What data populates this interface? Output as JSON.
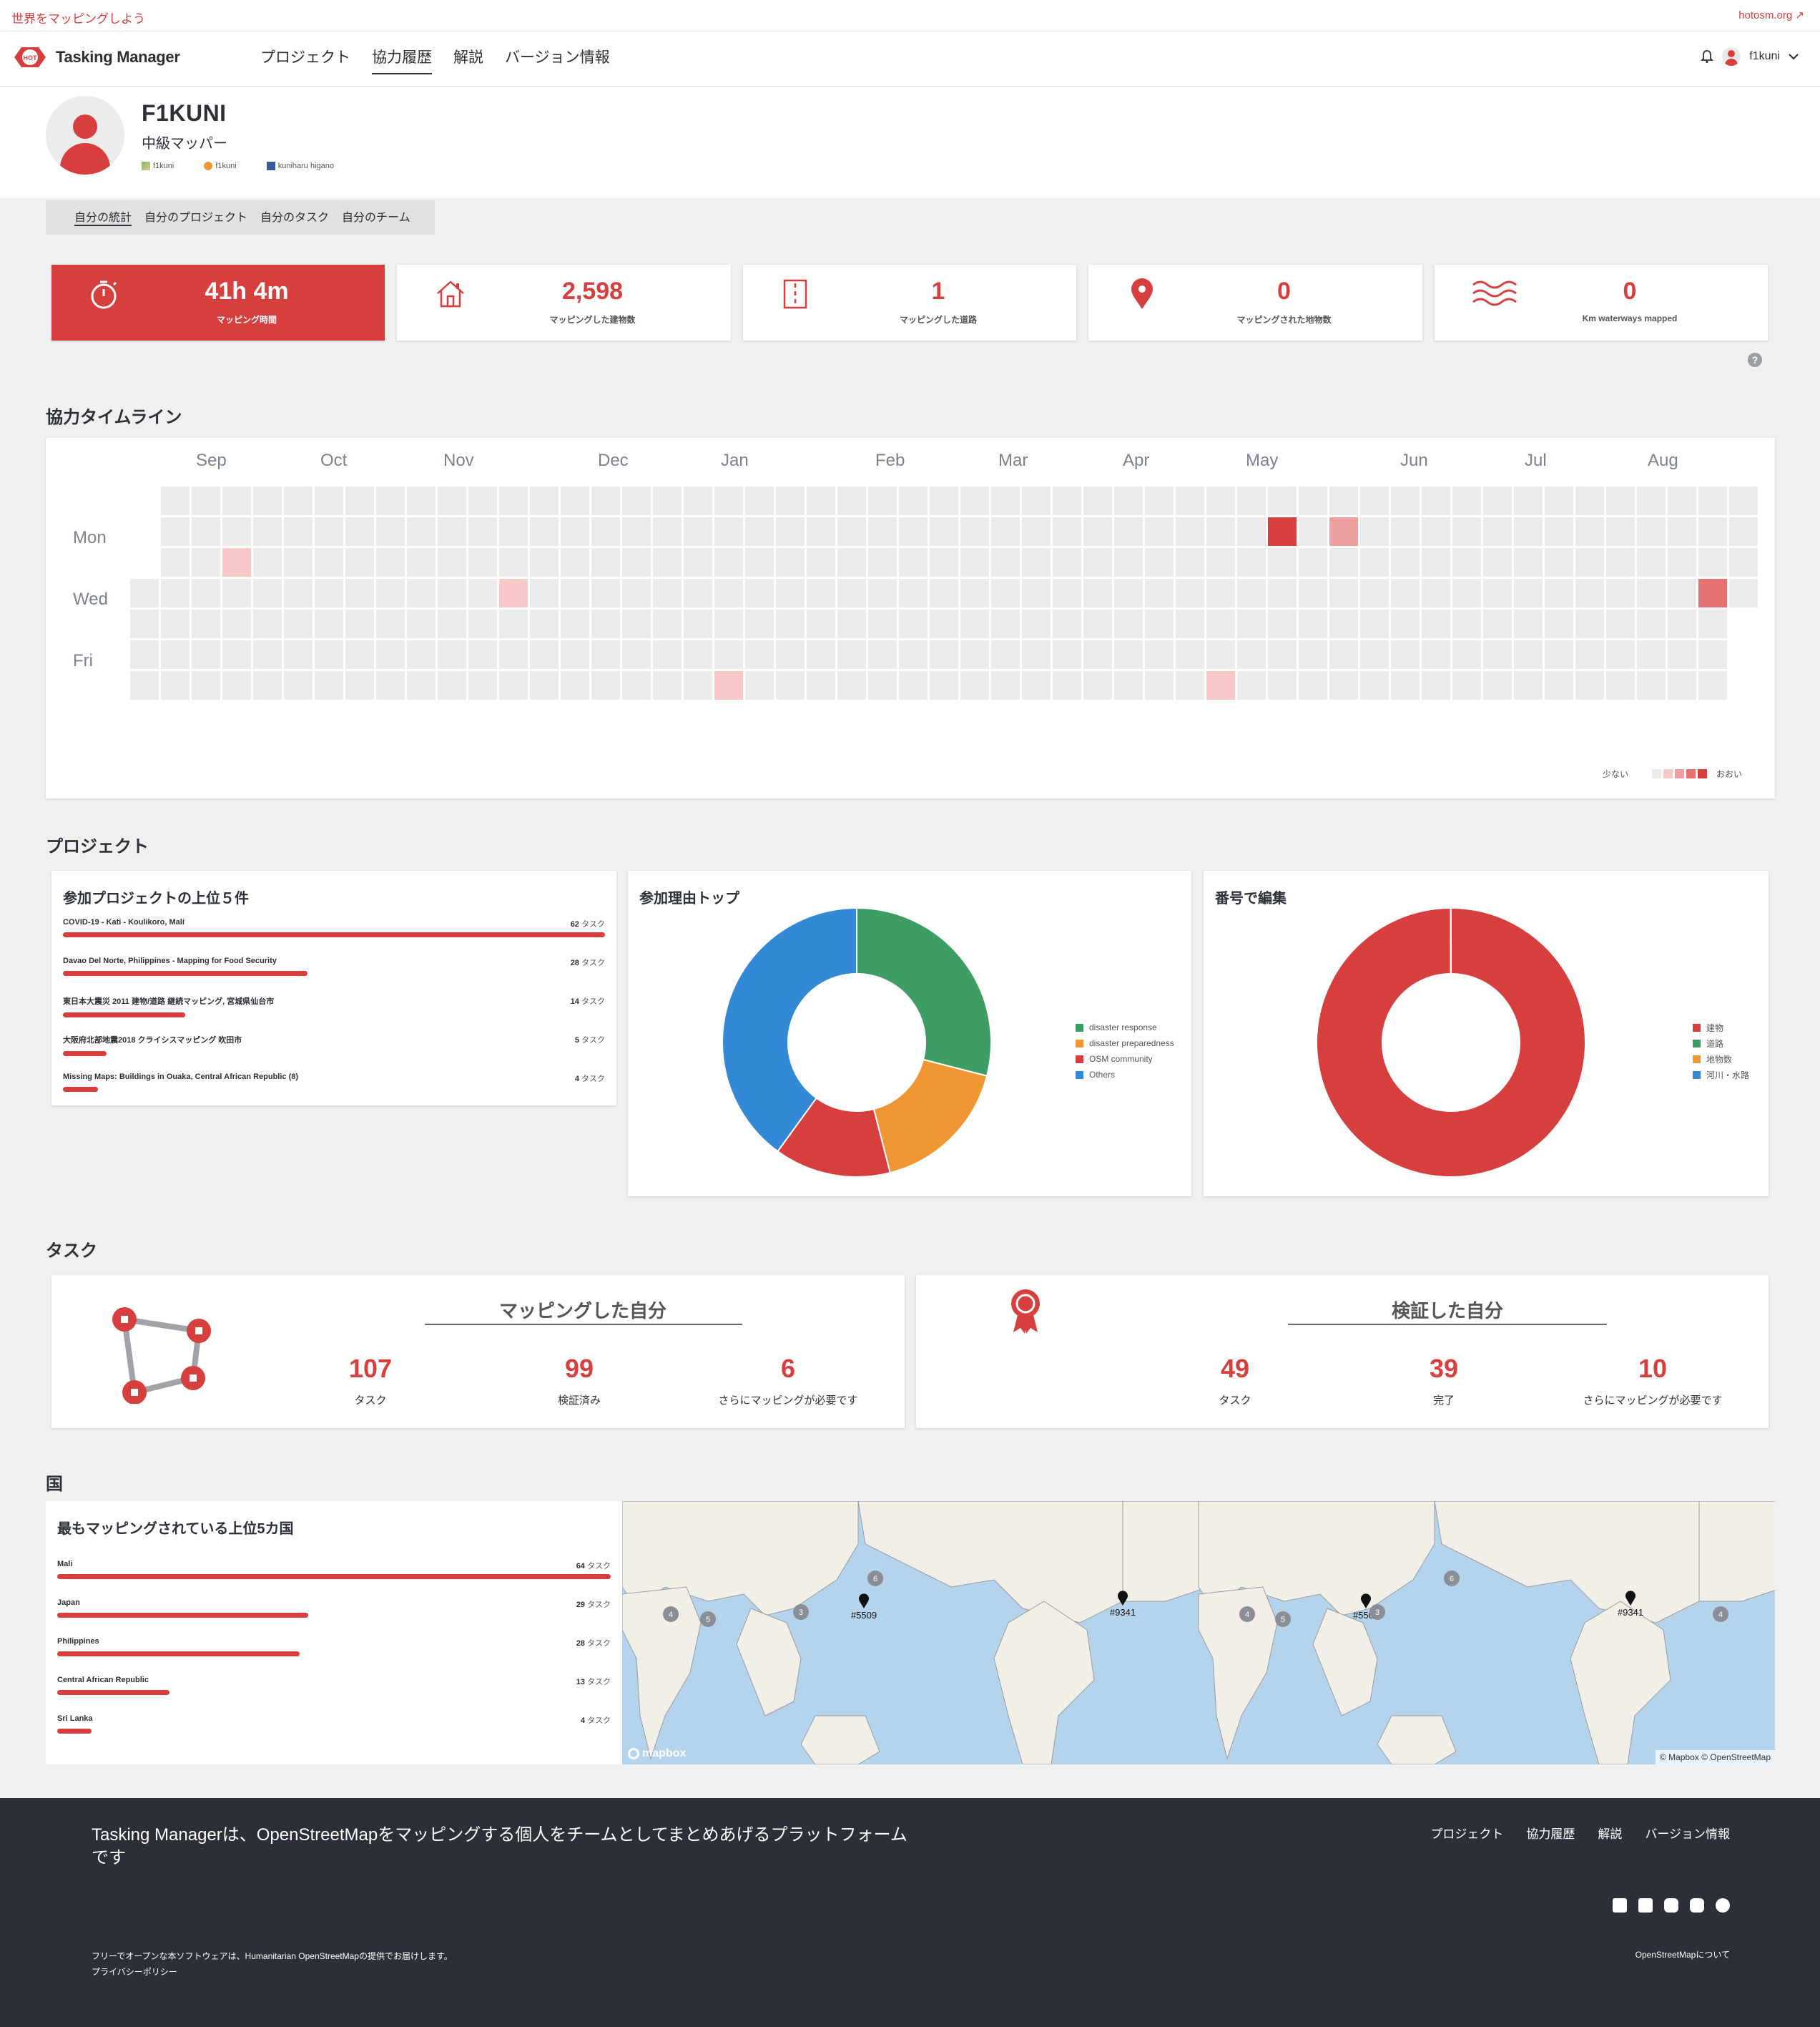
{
  "topbar": {
    "left_link": "世界をマッピングしよう",
    "right_link": "hotosm.org"
  },
  "header": {
    "logo_badge": "HOT",
    "logo_text": "Tasking Manager",
    "nav": [
      "プロジェクト",
      "協力履歴",
      "解説",
      "バージョン情報"
    ],
    "active_nav": 1,
    "username": "f1kuni"
  },
  "profile": {
    "name": "F1KUNI",
    "level": "中級マッパー",
    "links": [
      {
        "icon": "osm-icon",
        "label": "f1kuni"
      },
      {
        "icon": "hdyc-icon",
        "label": "f1kuni"
      },
      {
        "icon": "facebook-icon",
        "label": "kuniharu higano"
      }
    ]
  },
  "subnav": [
    "自分の統計",
    "自分のプロジェクト",
    "自分のタスク",
    "自分のチーム"
  ],
  "stats": [
    {
      "icon": "stopwatch-icon",
      "value": "41h 4m",
      "label": "マッピング時間"
    },
    {
      "icon": "house-icon",
      "value": "2,598",
      "label": "マッピングした建物数"
    },
    {
      "icon": "road-icon",
      "value": "1",
      "label": "マッピングした道路"
    },
    {
      "icon": "map-pin-icon",
      "value": "0",
      "label": "マッピングされた地物数"
    },
    {
      "icon": "waves-icon",
      "value": "0",
      "label": "Km waterways mapped"
    }
  ],
  "timeline": {
    "title": "協力タイムライン",
    "months": [
      "Sep",
      "Oct",
      "Nov",
      "Dec",
      "Jan",
      "Feb",
      "Mar",
      "Apr",
      "May",
      "Jun",
      "Jul",
      "Aug"
    ],
    "days": [
      "Mon",
      "Wed",
      "Fri"
    ],
    "legend_low": "少ない",
    "legend_high": "おおい",
    "colors": [
      "#ebebeb",
      "#f6c8c8",
      "#ee9f9f",
      "#e57373",
      "#d73f3f"
    ]
  },
  "projects_section": {
    "title": "プロジェクト",
    "top5_title": "参加プロジェクトの上位５件",
    "unit": "タスク",
    "top5": [
      {
        "name": "COVID-19 - Kati - Koulikoro, Mali",
        "count": 62
      },
      {
        "name": "Davao Del Norte, Philippines - Mapping for Food Security",
        "count": 28
      },
      {
        "name": "東日本大震災 2011 建物/道路 継続マッピング, 宮城県仙台市",
        "count": 14
      },
      {
        "name": "大阪府北部地震2018 クライシスマッピング 吹田市",
        "count": 5
      },
      {
        "name": "Missing Maps: Buildings in Ouaka, Central African Republic (8)",
        "count": 4
      }
    ],
    "reasons_title": "参加理由トップ",
    "reasons_legend": [
      {
        "label": "disaster response",
        "color": "#3d9d64"
      },
      {
        "label": "disaster preparedness",
        "color": "#f09733"
      },
      {
        "label": "OSM community",
        "color": "#d73f3f"
      },
      {
        "label": "Others",
        "color": "#3389d6"
      }
    ],
    "edits_title": "番号で編集",
    "edits_legend": [
      {
        "label": "建物",
        "color": "#d73f3f"
      },
      {
        "label": "道路",
        "color": "#3d9d64"
      },
      {
        "label": "地物数",
        "color": "#f09733"
      },
      {
        "label": "河川・水路",
        "color": "#3389d6"
      }
    ]
  },
  "chart_data": [
    {
      "type": "pie",
      "title": "参加理由トップ",
      "categories": [
        "disaster response",
        "disaster preparedness",
        "OSM community",
        "Others"
      ],
      "values": [
        29,
        17,
        14,
        40
      ]
    },
    {
      "type": "pie",
      "title": "番号で編集",
      "categories": [
        "建物",
        "道路",
        "地物数",
        "河川・水路"
      ],
      "values": [
        2598,
        1,
        0,
        0
      ]
    }
  ],
  "tasks_section": {
    "title": "タスク",
    "mapped": {
      "title": "マッピングした自分",
      "stats": [
        {
          "value": "107",
          "label": "タスク"
        },
        {
          "value": "99",
          "label": "検証済み"
        },
        {
          "value": "6",
          "label": "さらにマッピングが必要です"
        }
      ]
    },
    "validated": {
      "title": "検証した自分",
      "stats": [
        {
          "value": "49",
          "label": "タスク"
        },
        {
          "value": "39",
          "label": "完了"
        },
        {
          "value": "10",
          "label": "さらにマッピングが必要です"
        }
      ]
    }
  },
  "countries_section": {
    "title": "国",
    "card_title": "最もマッピングされている上位5カ国",
    "unit": "タスク",
    "countries": [
      {
        "name": "Mali",
        "count": 64
      },
      {
        "name": "Japan",
        "count": 29
      },
      {
        "name": "Philippines",
        "count": 28
      },
      {
        "name": "Central African Republic",
        "count": 13
      },
      {
        "name": "Sri Lanka",
        "count": 4
      }
    ],
    "map_markers": [
      "#5509",
      "#9341",
      "#5509",
      "#9341"
    ],
    "map_clusters": [
      "6",
      "4",
      "5",
      "3",
      "6",
      "4",
      "5",
      "3",
      "4"
    ],
    "map_logo": "mapbox",
    "map_attribution": "© Mapbox © OpenStreetMap"
  },
  "footer": {
    "tagline": "Tasking Managerは、OpenStreetMapをマッピングする個人をチームとしてまとめあげるプラットフォームです",
    "nav": [
      "プロジェクト",
      "協力履歴",
      "解説",
      "バージョン情報"
    ],
    "social": [
      "twitter-icon",
      "facebook-icon",
      "youtube-icon",
      "instagram-icon",
      "github-icon"
    ],
    "copyright": "フリーでオープンな本ソフトウェアは、Humanitarian OpenStreetMapの提供でお届けします。",
    "privacy": "プライバシーポリシー",
    "osm_link": "OpenStreetMapについて"
  }
}
